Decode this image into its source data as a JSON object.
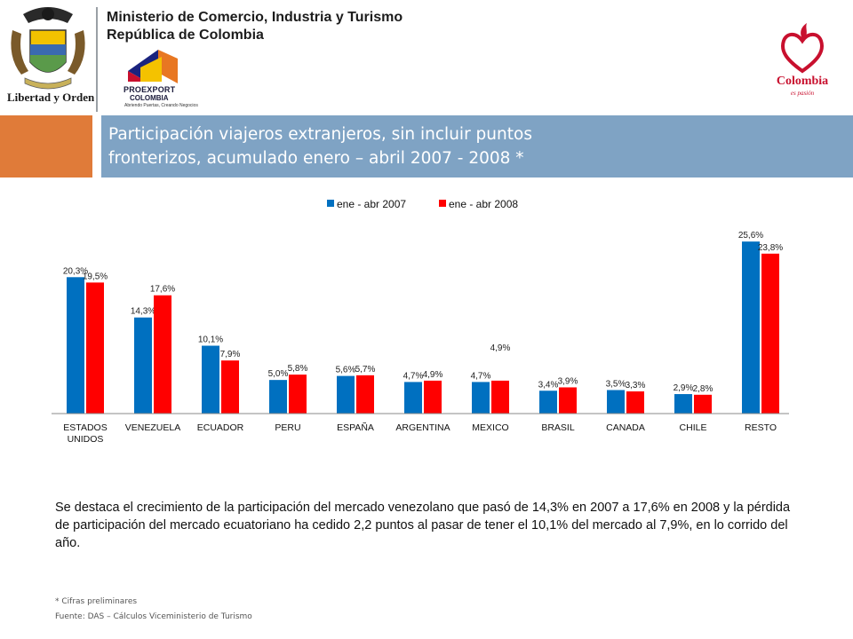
{
  "header": {
    "ministry_line1": "Ministerio de Comercio, Industria y Turismo",
    "ministry_line2": "República de Colombia",
    "crest_motto": "Libertad y Orden",
    "proexport_name": "PROEXPORT",
    "proexport_country": "COLOMBIA",
    "proexport_tagline": "Abriendo Puertas, Creando Negocios",
    "brand_word": "Colombia",
    "brand_tagline": "es pasión"
  },
  "title": {
    "line1": "Participación viajeros extranjeros, sin incluir puntos",
    "line2": "fronterizos, acumulado enero – abril 2007 - 2008 *"
  },
  "colors": {
    "series_2007": "#0070c0",
    "series_2008": "#ff0000",
    "title_bar": "#7fa3c4",
    "accent_block": "#e07b39"
  },
  "chart_data": {
    "type": "bar",
    "title": "",
    "xlabel": "",
    "ylabel": "",
    "ylim": [
      0,
      28
    ],
    "grid": false,
    "legend_position": "top",
    "categories": [
      [
        "ESTADOS",
        "UNIDOS"
      ],
      [
        "VENEZUELA"
      ],
      [
        "ECUADOR"
      ],
      [
        "PERU"
      ],
      [
        "ESPAÑA"
      ],
      [
        "ARGENTINA"
      ],
      [
        "MEXICO"
      ],
      [
        "BRASIL"
      ],
      [
        "CANADA"
      ],
      [
        "CHILE"
      ],
      [
        "RESTO"
      ]
    ],
    "series": [
      {
        "name": "ene - abr 2007",
        "values": [
          20.3,
          14.3,
          10.1,
          5.0,
          5.6,
          4.7,
          4.7,
          3.4,
          3.5,
          2.9,
          25.6
        ],
        "labels": [
          "20,3%",
          "14,3%",
          "10,1%",
          "5,0%",
          "5,6%",
          "4,7%",
          "4,7%",
          "3,4%",
          "3,5%",
          "2,9%",
          "25,6%"
        ]
      },
      {
        "name": "ene - abr 2008",
        "values": [
          19.5,
          17.6,
          7.9,
          5.8,
          5.7,
          4.9,
          4.9,
          3.9,
          3.3,
          2.8,
          23.8
        ],
        "labels": [
          "19,5%",
          "17,6%",
          "7,9%",
          "5,8%",
          "5,7%",
          "4,9%",
          "4,9%",
          "3,9%",
          "3,3%",
          "2,8%",
          "23,8%"
        ]
      }
    ]
  },
  "commentary": "Se destaca el crecimiento de la participación del mercado venezolano que pasó de 14,3% en 2007 a 17,6% en 2008 y la pérdida de participación del mercado ecuatoriano ha cedido 2,2 puntos al pasar de tener el 10,1% del mercado al 7,9%, en lo corrido del año.",
  "footnotes": {
    "preliminary": "* Cifras preliminares",
    "source": "Fuente: DAS – Cálculos Viceministerio de Turismo"
  }
}
